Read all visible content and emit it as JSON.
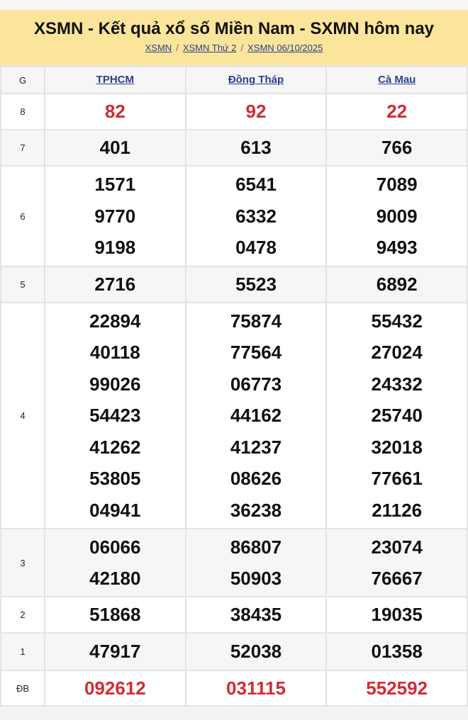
{
  "title": "XSMN - Kết quả xổ số Miền Nam - SXMN hôm nay",
  "breadcrumb": [
    "XSMN",
    "XSMN Thứ 2",
    "XSMN 06/10/2025"
  ],
  "header": {
    "g": "G",
    "provinces": [
      "TPHCM",
      "Đồng Tháp",
      "Cà Mau"
    ]
  },
  "colors": {
    "accent_red": "#d42a33",
    "link": "#2a3d8f",
    "header_bg": "#fbe59a"
  },
  "rows": [
    {
      "label": "8",
      "red": true,
      "values": [
        [
          "82"
        ],
        [
          "92"
        ],
        [
          "22"
        ]
      ]
    },
    {
      "label": "7",
      "values": [
        [
          "401"
        ],
        [
          "613"
        ],
        [
          "766"
        ]
      ]
    },
    {
      "label": "6",
      "values": [
        [
          "1571",
          "9770",
          "9198"
        ],
        [
          "6541",
          "6332",
          "0478"
        ],
        [
          "7089",
          "9009",
          "9493"
        ]
      ]
    },
    {
      "label": "5",
      "values": [
        [
          "2716"
        ],
        [
          "5523"
        ],
        [
          "6892"
        ]
      ]
    },
    {
      "label": "4",
      "values": [
        [
          "22894",
          "40118",
          "99026",
          "54423",
          "41262",
          "53805",
          "04941"
        ],
        [
          "75874",
          "77564",
          "06773",
          "44162",
          "41237",
          "08626",
          "36238"
        ],
        [
          "55432",
          "27024",
          "24332",
          "25740",
          "32018",
          "77661",
          "21126"
        ]
      ]
    },
    {
      "label": "3",
      "values": [
        [
          "06066",
          "42180"
        ],
        [
          "86807",
          "50903"
        ],
        [
          "23074",
          "76667"
        ]
      ]
    },
    {
      "label": "2",
      "values": [
        [
          "51868"
        ],
        [
          "38435"
        ],
        [
          "19035"
        ]
      ]
    },
    {
      "label": "1",
      "values": [
        [
          "47917"
        ],
        [
          "52038"
        ],
        [
          "01358"
        ]
      ]
    },
    {
      "label": "ĐB",
      "red": true,
      "values": [
        [
          "092612"
        ],
        [
          "031115"
        ],
        [
          "552592"
        ]
      ]
    }
  ]
}
